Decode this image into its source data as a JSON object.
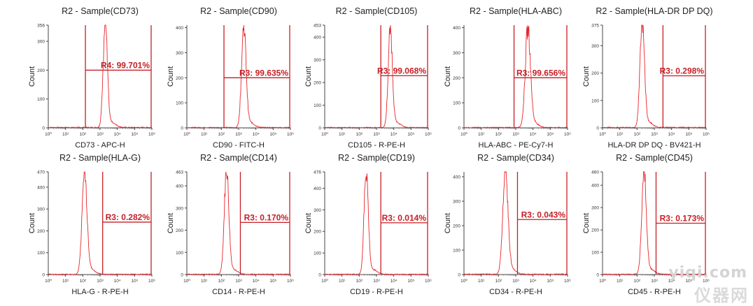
{
  "watermark": {
    "url": "yiqi.com",
    "name": "仪器网"
  },
  "chart_data": [
    {
      "type": "histogram",
      "title": "R2 - Sample(CD73)",
      "xlabel": "CD73 - APC-H",
      "ylabel": "Count",
      "yticks": [
        0,
        100,
        200,
        300,
        356
      ],
      "ymax": 356,
      "xlim_decades": [
        0,
        6
      ],
      "xtick_labels": [
        "10⁰",
        "10¹",
        "10²",
        "10³",
        "10⁴",
        "10⁵",
        "10⁶"
      ],
      "peak_log10": 3.3,
      "peak_width": 0.12,
      "peak_count": 356,
      "gate": {
        "name": "R4",
        "percent": "99.701%",
        "start_log10": 2.15,
        "end_log10": 6.0,
        "level": 200
      },
      "line_color": "#e8262c",
      "gate_color": "#c51f25"
    },
    {
      "type": "histogram",
      "title": "R2 - Sample(CD90)",
      "xlabel": "CD90 - FITC-H",
      "ylabel": "Count",
      "yticks": [
        0,
        100,
        200,
        300,
        400
      ],
      "ymax": 410,
      "xlim_decades": [
        0,
        6
      ],
      "xtick_labels": [
        "10⁰",
        "10¹",
        "10²",
        "10³",
        "10⁴",
        "10⁵",
        "10⁶"
      ],
      "peak_log10": 3.3,
      "peak_width": 0.13,
      "peak_count": 400,
      "gate": {
        "name": "R3",
        "percent": "99.635%",
        "start_log10": 2.15,
        "end_log10": 6.0,
        "level": 200
      },
      "line_color": "#e8262c",
      "gate_color": "#c51f25"
    },
    {
      "type": "histogram",
      "title": "R2 - Sample(CD105)",
      "xlabel": "CD105 - R-PE-H",
      "ylabel": "Count",
      "yticks": [
        0,
        100,
        200,
        300,
        400,
        453
      ],
      "ymax": 453,
      "xlim_decades": [
        0,
        6
      ],
      "xtick_labels": [
        "10⁰",
        "10¹",
        "10²",
        "10³",
        "10⁴",
        "10⁵",
        "10⁶"
      ],
      "peak_log10": 3.8,
      "peak_width": 0.12,
      "peak_count": 430,
      "gate": {
        "name": "R3",
        "percent": "99.068%",
        "start_log10": 3.25,
        "end_log10": 6.0,
        "level": 230
      },
      "line_color": "#e8262c",
      "gate_color": "#c51f25"
    },
    {
      "type": "histogram",
      "title": "R2 - Sample(HLA-ABC)",
      "xlabel": "HLA-ABC - PE-Cy7-H",
      "ylabel": "Count",
      "yticks": [
        0,
        100,
        200,
        300,
        400
      ],
      "ymax": 410,
      "xlim_decades": [
        0,
        6
      ],
      "xtick_labels": [
        "10⁰",
        "10¹",
        "10²",
        "10³",
        "10⁴",
        "10⁵",
        "10⁶"
      ],
      "peak_log10": 3.7,
      "peak_width": 0.15,
      "peak_count": 390,
      "gate": {
        "name": "R3",
        "percent": "99.656%",
        "start_log10": 2.9,
        "end_log10": 6.0,
        "level": 200
      },
      "line_color": "#e8262c",
      "gate_color": "#c51f25"
    },
    {
      "type": "histogram",
      "title": "R2 - Sample(HLA-DR DP DQ)",
      "xlabel": "HLA-DR DP DQ - BV421-H",
      "ylabel": "Count",
      "yticks": [
        0,
        100,
        200,
        300,
        375
      ],
      "ymax": 375,
      "xlim_decades": [
        0,
        6
      ],
      "xtick_labels": [
        "10⁰",
        "10¹",
        "10²",
        "10³",
        "10⁴",
        "10⁵",
        "10⁶"
      ],
      "peak_log10": 2.3,
      "peak_width": 0.13,
      "peak_count": 375,
      "gate": {
        "name": "R3",
        "percent": "0.298%",
        "start_log10": 3.5,
        "end_log10": 6.0,
        "level": 190
      },
      "line_color": "#e8262c",
      "gate_color": "#c51f25"
    },
    {
      "type": "histogram",
      "title": "R2 - Sample(HLA-G)",
      "xlabel": "HLA-G - R-PE-H",
      "ylabel": "Count",
      "yticks": [
        0,
        100,
        200,
        300,
        400,
        470
      ],
      "ymax": 470,
      "xlim_decades": [
        0,
        6
      ],
      "xtick_labels": [
        "10⁰",
        "10¹",
        "10²",
        "10³",
        "10⁴",
        "10⁵",
        "10⁶"
      ],
      "peak_log10": 2.1,
      "peak_width": 0.14,
      "peak_count": 470,
      "gate": {
        "name": "R3",
        "percent": "0.282%",
        "start_log10": 3.15,
        "end_log10": 6.0,
        "level": 240
      },
      "line_color": "#e8262c",
      "gate_color": "#c51f25"
    },
    {
      "type": "histogram",
      "title": "R2 - Sample(CD14)",
      "xlabel": "CD14 - R-PE-H",
      "ylabel": "Count",
      "yticks": [
        0,
        100,
        200,
        300,
        400,
        463
      ],
      "ymax": 463,
      "xlim_decades": [
        0,
        6
      ],
      "xtick_labels": [
        "10⁰",
        "10¹",
        "10²",
        "10³",
        "10⁴",
        "10⁵",
        "10⁶"
      ],
      "peak_log10": 2.3,
      "peak_width": 0.13,
      "peak_count": 463,
      "gate": {
        "name": "R3",
        "percent": "0.170%",
        "start_log10": 3.1,
        "end_log10": 6.0,
        "level": 235
      },
      "line_color": "#e8262c",
      "gate_color": "#c51f25"
    },
    {
      "type": "histogram",
      "title": "R2 - Sample(CD19)",
      "xlabel": "CD19 - R-PE-H",
      "ylabel": "Count",
      "yticks": [
        0,
        100,
        200,
        300,
        400,
        476
      ],
      "ymax": 476,
      "xlim_decades": [
        0,
        6
      ],
      "xtick_labels": [
        "10⁰",
        "10¹",
        "10²",
        "10³",
        "10⁴",
        "10⁵",
        "10⁶"
      ],
      "peak_log10": 2.4,
      "peak_width": 0.12,
      "peak_count": 476,
      "gate": {
        "name": "R3",
        "percent": "0.014%",
        "start_log10": 3.25,
        "end_log10": 6.0,
        "level": 240
      },
      "line_color": "#e8262c",
      "gate_color": "#c51f25"
    },
    {
      "type": "histogram",
      "title": "R2 - Sample(CD34)",
      "xlabel": "CD34 - R-PE-H",
      "ylabel": "Count",
      "yticks": [
        0,
        100,
        200,
        300,
        400
      ],
      "ymax": 420,
      "xlim_decades": [
        0,
        6
      ],
      "xtick_labels": [
        "10⁰",
        "10¹",
        "10²",
        "10³",
        "10⁴",
        "10⁵",
        "10⁶"
      ],
      "peak_log10": 2.4,
      "peak_width": 0.15,
      "peak_count": 415,
      "gate": {
        "name": "R3",
        "percent": "0.043%",
        "start_log10": 3.1,
        "end_log10": 6.0,
        "level": 225
      },
      "line_color": "#e8262c",
      "gate_color": "#c51f25"
    },
    {
      "type": "histogram",
      "title": "R2 - Sample(CD45)",
      "xlabel": "CD45 - R-PE-H",
      "ylabel": "Count",
      "yticks": [
        0,
        100,
        200,
        300,
        400,
        460
      ],
      "ymax": 460,
      "xlim_decades": [
        0,
        6
      ],
      "xtick_labels": [
        "10⁰",
        "10¹",
        "10²",
        "10³",
        "10⁴",
        "10⁵",
        "10⁶"
      ],
      "peak_log10": 2.4,
      "peak_width": 0.13,
      "peak_count": 460,
      "gate": {
        "name": "R3",
        "percent": "0.173%",
        "start_log10": 3.1,
        "end_log10": 6.0,
        "level": 230
      },
      "line_color": "#e8262c",
      "gate_color": "#c51f25"
    }
  ]
}
